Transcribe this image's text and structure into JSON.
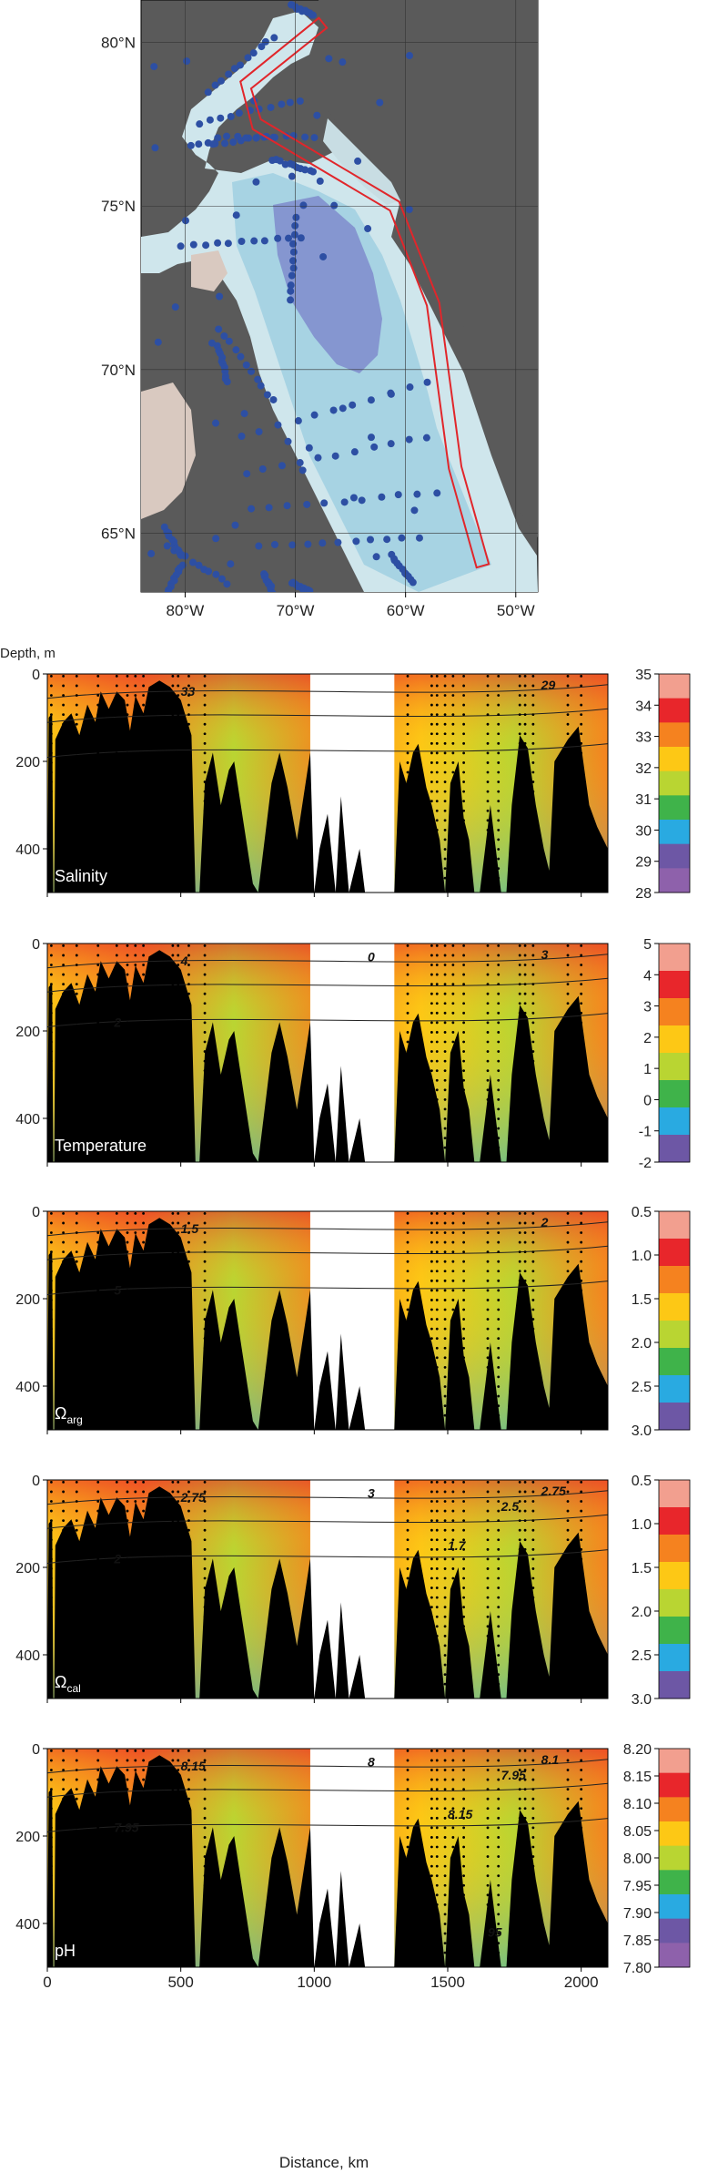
{
  "colors": {
    "land": "#5a5a5a",
    "land_light": "#d9c9c0",
    "water_light": "#cfe6ec",
    "water_mid": "#a7d3e3",
    "water_deep": "#8596d0",
    "station": "#2d4fa3",
    "track": "#e1262b",
    "bathymetry": "#000000",
    "sample_dots": "#000000"
  },
  "chart_data": [
    {
      "type": "map",
      "id": "map",
      "lat_ticks": [
        {
          "value": 80,
          "label": "80°N"
        },
        {
          "value": 75,
          "label": "75°N"
        },
        {
          "value": 70,
          "label": "70°N"
        },
        {
          "value": 65,
          "label": "65°N"
        }
      ],
      "lon_ticks": [
        {
          "value": -80,
          "label": "80°W"
        },
        {
          "value": -70,
          "label": "70°W"
        },
        {
          "value": -60,
          "label": "60°W"
        },
        {
          "value": -50,
          "label": "50°W"
        }
      ],
      "lon_range": [
        -84,
        -48
      ],
      "lat_range": [
        63.2,
        81.3
      ],
      "track": [
        [
          -67.5,
          80.6
        ],
        [
          -74.5,
          78.7
        ],
        [
          -73.5,
          77.5
        ],
        [
          -61.0,
          75.0
        ],
        [
          -57.5,
          72.0
        ],
        [
          -55.5,
          67.0
        ],
        [
          -53.0,
          64.0
        ]
      ]
    },
    {
      "type": "heatmap",
      "id": "salinity",
      "label": "Salinity",
      "xlabel": "",
      "ylabel": "Depth, m",
      "yticks": [
        0,
        200,
        400
      ],
      "xticks": [
        0,
        500,
        1000,
        1500,
        2000
      ],
      "xlim": [
        0,
        2100
      ],
      "ylim": [
        0,
        500
      ],
      "colorbar": {
        "ticks": [
          "35",
          "34",
          "33",
          "32",
          "31",
          "30",
          "29",
          "28"
        ],
        "colors": [
          "#f29f8f",
          "#e8262b",
          "#f5821f",
          "#fdc815",
          "#b9d532",
          "#3fb34a",
          "#29aae1",
          "#6d57a5",
          "#8e61ab"
        ]
      },
      "contours": [
        "33",
        "29"
      ]
    },
    {
      "type": "heatmap",
      "id": "temperature",
      "label": "Temperature",
      "yticks": [
        0,
        200,
        400
      ],
      "xticks": [
        0,
        500,
        1000,
        1500,
        2000
      ],
      "xlim": [
        0,
        2100
      ],
      "ylim": [
        0,
        500
      ],
      "colorbar": {
        "ticks": [
          "5",
          "4",
          "3",
          "2",
          "1",
          "0",
          "-1",
          "-2"
        ],
        "colors": [
          "#f29f8f",
          "#e8262b",
          "#f5821f",
          "#fdc815",
          "#b9d532",
          "#3fb34a",
          "#29aae1",
          "#6d57a5"
        ]
      },
      "contours": [
        "4",
        "3",
        "2",
        "0"
      ]
    },
    {
      "type": "heatmap",
      "id": "omega-arg",
      "label_main": "Ω",
      "label_sub": "arg",
      "yticks": [
        0,
        200,
        400
      ],
      "xticks": [
        0,
        500,
        1000,
        1500,
        2000
      ],
      "xlim": [
        0,
        2100
      ],
      "ylim": [
        0,
        500
      ],
      "colorbar": {
        "ticks": [
          "0.5",
          "1.0",
          "1.5",
          "2.0",
          "2.5",
          "3.0"
        ],
        "colors": [
          "#f29f8f",
          "#e8262b",
          "#f5821f",
          "#fdc815",
          "#b9d532",
          "#3fb34a",
          "#29aae1",
          "#6d57a5"
        ]
      },
      "contours": [
        "1.5",
        "2",
        "5"
      ]
    },
    {
      "type": "heatmap",
      "id": "omega-cal",
      "label_main": "Ω",
      "label_sub": "cal",
      "yticks": [
        0,
        200,
        400
      ],
      "xticks": [
        0,
        500,
        1000,
        1500,
        2000
      ],
      "xlim": [
        0,
        2100
      ],
      "ylim": [
        0,
        500
      ],
      "colorbar": {
        "ticks": [
          "0.5",
          "1.0",
          "1.5",
          "2.0",
          "2.5",
          "3.0"
        ],
        "colors": [
          "#f29f8f",
          "#e8262b",
          "#f5821f",
          "#fdc815",
          "#b9d532",
          "#3fb34a",
          "#29aae1",
          "#6d57a5"
        ]
      },
      "contours": [
        "2.75",
        "2.75",
        "2",
        "3",
        "2.5",
        "1.7"
      ]
    },
    {
      "type": "heatmap",
      "id": "ph",
      "label": "pH",
      "xlabel": "Distance, km",
      "yticks": [
        0,
        200,
        400
      ],
      "xticks": [
        0,
        500,
        1000,
        1500,
        2000
      ],
      "xlim": [
        0,
        2100
      ],
      "ylim": [
        0,
        500
      ],
      "colorbar": {
        "ticks": [
          "8.20",
          "8.15",
          "8.10",
          "8.05",
          "8.00",
          "7.95",
          "7.90",
          "7.85",
          "7.80"
        ],
        "colors": [
          "#f29f8f",
          "#e8262b",
          "#f5821f",
          "#fdc815",
          "#b9d532",
          "#3fb34a",
          "#29aae1",
          "#6d57a5",
          "#8e61ab"
        ]
      },
      "contours": [
        "8.15",
        "8.1",
        "7.95",
        "8",
        "7.95",
        "8.15",
        "95"
      ]
    }
  ]
}
